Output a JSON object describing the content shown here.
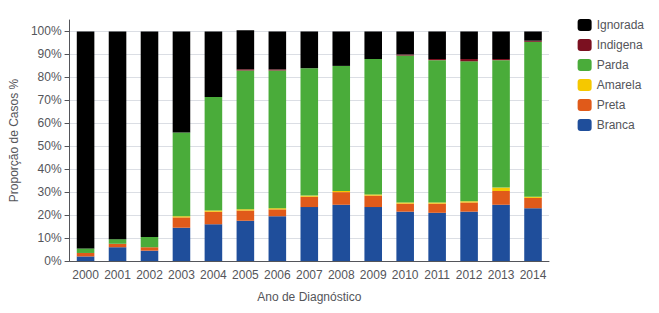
{
  "chart_data": {
    "type": "bar",
    "stacked": true,
    "xlabel": "Ano de Diagnóstico",
    "ylabel": "Proporção de Casos %",
    "categories": [
      "2000",
      "2001",
      "2002",
      "2003",
      "2004",
      "2005",
      "2006",
      "2007",
      "2008",
      "2009",
      "2010",
      "2011",
      "2012",
      "2013",
      "2014"
    ],
    "series": [
      {
        "name": "Branca",
        "color": "#1f4e9b",
        "values": [
          2.0,
          6.0,
          4.5,
          14.5,
          16.0,
          17.5,
          19.5,
          23.5,
          24.5,
          23.5,
          21.5,
          21.0,
          21.5,
          24.5,
          23.0
        ]
      },
      {
        "name": "Preta",
        "color": "#e05a1a",
        "values": [
          1.5,
          1.5,
          1.5,
          4.5,
          5.5,
          4.5,
          3.0,
          4.5,
          5.5,
          5.0,
          3.5,
          4.0,
          4.0,
          6.0,
          4.5
        ]
      },
      {
        "name": "Amarela",
        "color": "#f5c800",
        "values": [
          0.0,
          0.0,
          0.0,
          0.5,
          0.5,
          0.5,
          0.5,
          0.5,
          0.5,
          0.5,
          0.5,
          0.5,
          0.5,
          1.5,
          0.5
        ]
      },
      {
        "name": "Parda",
        "color": "#4aac3a",
        "values": [
          2.0,
          2.0,
          4.5,
          36.5,
          49.5,
          60.5,
          60.0,
          55.5,
          54.5,
          59.0,
          64.0,
          62.0,
          61.0,
          55.5,
          67.5
        ]
      },
      {
        "name": "Indigena",
        "color": "#7b1020",
        "values": [
          0.0,
          0.0,
          0.0,
          0.0,
          0.0,
          0.5,
          0.5,
          0.0,
          0.0,
          0.0,
          0.5,
          0.5,
          1.0,
          0.5,
          0.5
        ]
      },
      {
        "name": "Ignorada",
        "color": "#000000",
        "values": [
          94.5,
          90.5,
          89.5,
          44.0,
          28.5,
          17.0,
          16.5,
          16.0,
          15.0,
          12.0,
          10.0,
          12.0,
          12.0,
          12.0,
          4.0
        ]
      }
    ],
    "ylim": [
      0,
      105
    ],
    "yticks": [
      {
        "value": 0,
        "label": "0%"
      },
      {
        "value": 10,
        "label": "10%"
      },
      {
        "value": 20,
        "label": "20%"
      },
      {
        "value": 30,
        "label": "30%"
      },
      {
        "value": 40,
        "label": "40%"
      },
      {
        "value": 50,
        "label": "50%"
      },
      {
        "value": 60,
        "label": "60%"
      },
      {
        "value": 70,
        "label": "70%"
      },
      {
        "value": 80,
        "label": "80%"
      },
      {
        "value": 90,
        "label": "90%"
      },
      {
        "value": 100,
        "label": "100%"
      }
    ],
    "grid": true,
    "legend": "upper right"
  }
}
